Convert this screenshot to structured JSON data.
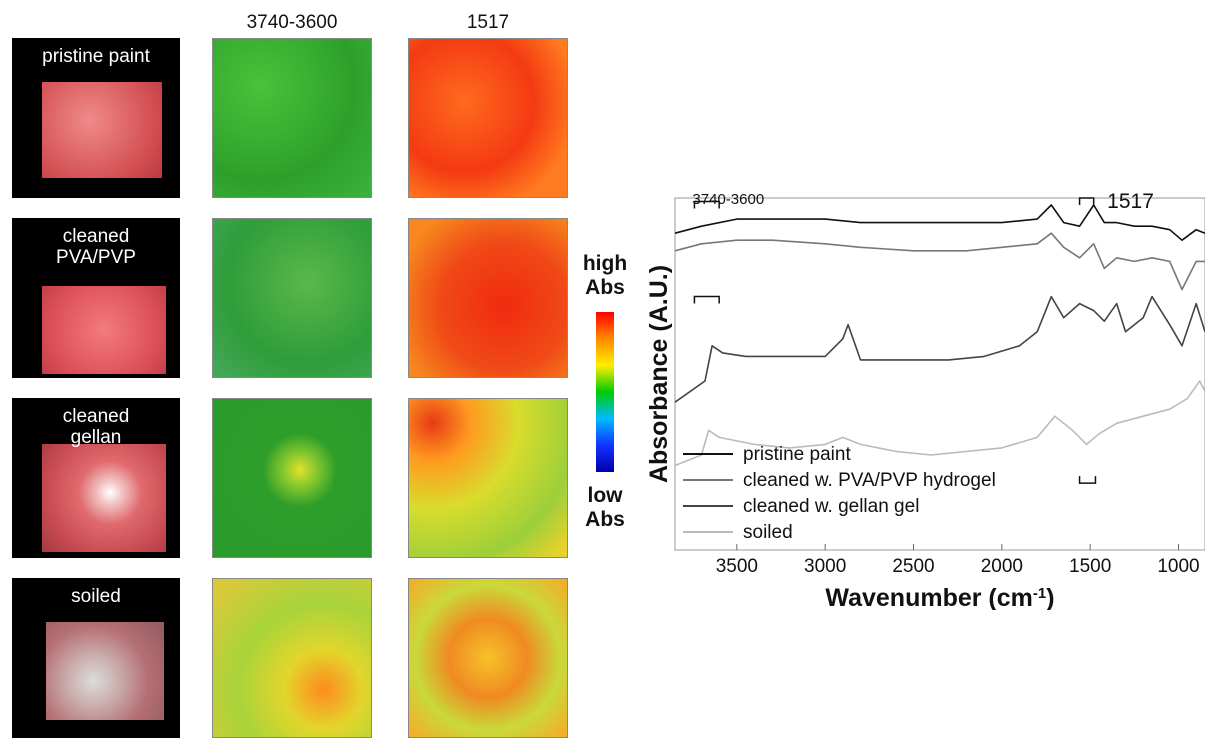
{
  "columns": {
    "maps_a": "3740-3600",
    "maps_b": "1517"
  },
  "rows": [
    {
      "label": "pristine paint"
    },
    {
      "label": "cleaned\nPVA/PVP"
    },
    {
      "label": "cleaned\ngellan"
    },
    {
      "label": "soiled"
    }
  ],
  "colorbar": {
    "high": "high\nAbs",
    "low": "low\nAbs"
  },
  "chart_data": {
    "type": "line",
    "xlabel": "Wavenumber (cm-1)",
    "ylabel": "Absorbance (A.U.)",
    "xlim": [
      3850,
      850
    ],
    "xticks": [
      3500,
      3000,
      2500,
      2000,
      1500,
      1000
    ],
    "bands": [
      {
        "label": "3740-3600",
        "range": [
          3740,
          3600
        ]
      },
      {
        "label": "1517",
        "value": 1517
      }
    ],
    "legend": "bottom-left",
    "series": [
      {
        "name": "pristine paint",
        "color": "#111111",
        "x": [
          3850,
          3700,
          3500,
          3300,
          3000,
          2800,
          2500,
          2200,
          2000,
          1800,
          1720,
          1650,
          1560,
          1480,
          1420,
          1350,
          1250,
          1150,
          1050,
          980,
          900,
          850
        ],
        "y": [
          0.9,
          0.92,
          0.94,
          0.94,
          0.94,
          0.93,
          0.93,
          0.93,
          0.93,
          0.94,
          0.98,
          0.93,
          0.92,
          0.98,
          0.93,
          0.93,
          0.92,
          0.92,
          0.91,
          0.88,
          0.91,
          0.9
        ]
      },
      {
        "name": "cleaned w. PVA/PVP hydrogel",
        "color": "#777777",
        "x": [
          3850,
          3700,
          3500,
          3300,
          3000,
          2800,
          2500,
          2200,
          2000,
          1800,
          1720,
          1650,
          1560,
          1480,
          1420,
          1350,
          1250,
          1150,
          1050,
          980,
          900,
          850
        ],
        "y": [
          0.85,
          0.87,
          0.88,
          0.88,
          0.87,
          0.86,
          0.85,
          0.85,
          0.86,
          0.87,
          0.9,
          0.86,
          0.83,
          0.87,
          0.8,
          0.83,
          0.82,
          0.83,
          0.82,
          0.74,
          0.82,
          0.82
        ]
      },
      {
        "name": "cleaned w. gellan gel",
        "color": "#444444",
        "x": [
          3850,
          3680,
          3640,
          3580,
          3450,
          3200,
          3000,
          2900,
          2870,
          2800,
          2600,
          2300,
          2100,
          1900,
          1800,
          1720,
          1650,
          1560,
          1480,
          1420,
          1350,
          1300,
          1200,
          1150,
          1050,
          980,
          900,
          850
        ],
        "y": [
          0.42,
          0.48,
          0.58,
          0.56,
          0.55,
          0.55,
          0.55,
          0.6,
          0.64,
          0.54,
          0.54,
          0.54,
          0.55,
          0.58,
          0.62,
          0.72,
          0.66,
          0.7,
          0.68,
          0.65,
          0.7,
          0.62,
          0.66,
          0.72,
          0.64,
          0.58,
          0.7,
          0.62
        ]
      },
      {
        "name": "soiled",
        "color": "#bbbbbb",
        "x": [
          3850,
          3700,
          3660,
          3600,
          3400,
          3200,
          3000,
          2900,
          2800,
          2600,
          2400,
          2200,
          2000,
          1800,
          1700,
          1600,
          1520,
          1450,
          1350,
          1200,
          1050,
          950,
          880,
          850
        ],
        "y": [
          0.24,
          0.27,
          0.34,
          0.32,
          0.3,
          0.29,
          0.3,
          0.32,
          0.3,
          0.28,
          0.27,
          0.28,
          0.29,
          0.32,
          0.38,
          0.34,
          0.3,
          0.33,
          0.36,
          0.38,
          0.4,
          0.43,
          0.48,
          0.45
        ]
      }
    ]
  }
}
